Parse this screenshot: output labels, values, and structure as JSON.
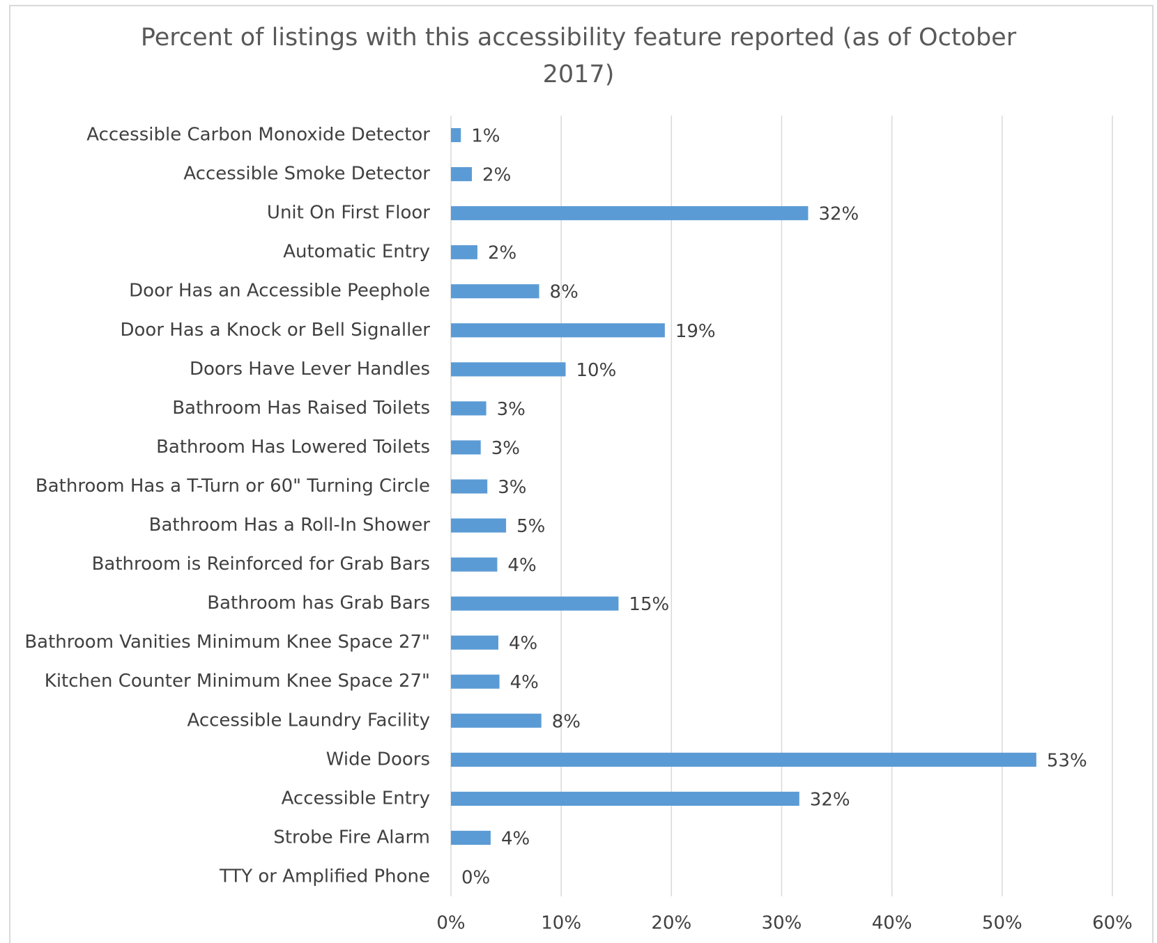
{
  "chart_data": {
    "type": "barh",
    "title": "Percent of listings with this accessibility feature reported  (as of October 2017)",
    "categories": [
      "Accessible Carbon Monoxide Detector",
      "Accessible Smoke Detector",
      "Unit On First Floor",
      "Automatic Entry",
      "Door Has an Accessible Peephole",
      "Door Has a Knock or Bell Signaller",
      "Doors Have Lever Handles",
      "Bathroom Has Raised Toilets",
      "Bathroom Has Lowered Toilets",
      "Bathroom Has a T-Turn or 60\" Turning Circle",
      "Bathroom Has a Roll-In Shower",
      "Bathroom is  Reinforced for Grab Bars",
      "Bathroom has Grab Bars",
      "Bathroom Vanities Minimum Knee Space 27\"",
      "Kitchen Counter Minimum Knee Space 27\"",
      "Accessible Laundry Facility",
      "Wide Doors",
      "Accessible Entry",
      "Strobe Fire Alarm",
      "TTY or Amplified Phone"
    ],
    "values": [
      0.9,
      1.9,
      32.4,
      2.4,
      8.0,
      19.4,
      10.4,
      3.2,
      2.7,
      3.3,
      5.0,
      4.2,
      15.2,
      4.3,
      4.4,
      8.2,
      53.1,
      31.6,
      3.6,
      0
    ],
    "value_labels": [
      "1%",
      "2%",
      "32%",
      "2%",
      "8%",
      "19%",
      "10%",
      "3%",
      "3%",
      "3%",
      "5%",
      "4%",
      "15%",
      "4%",
      "4%",
      "8%",
      "53%",
      "32%",
      "4%",
      "0%"
    ],
    "color": "#5b9bd5",
    "xlim": [
      0,
      60
    ],
    "xticks": [
      {
        "value": 0,
        "label": "0%"
      },
      {
        "value": 10,
        "label": "10%"
      },
      {
        "value": 20,
        "label": "20%"
      },
      {
        "value": 30,
        "label": "30%"
      },
      {
        "value": 40,
        "label": "40%"
      },
      {
        "value": 50,
        "label": "50%"
      },
      {
        "value": 60,
        "label": "60%"
      }
    ],
    "grid": true
  }
}
